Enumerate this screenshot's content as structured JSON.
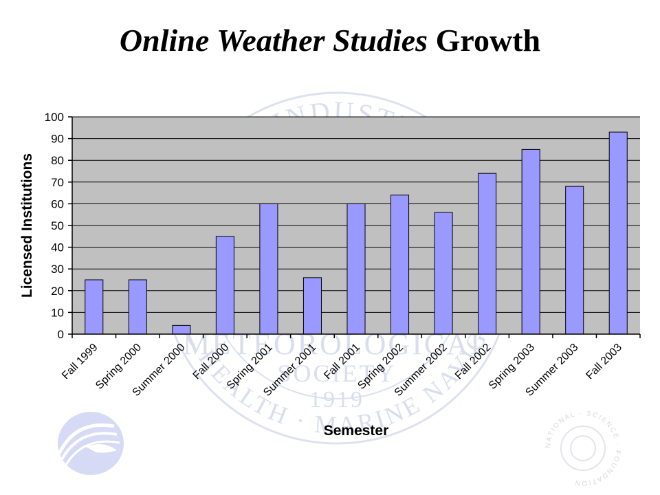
{
  "slide": {
    "title_italic": "Online Weather Studies",
    "title_rest": "Growth"
  },
  "watermark": {
    "seal_text_top": "ENGINEERING · INDUSTRY · COMMERCE",
    "seal_text_middle": [
      "METEOROLOGICAL",
      "SOCIETY",
      "1919"
    ],
    "seal_text_bottom": "PUBLIC HEALTH · MARINE NAVIGATION",
    "nsf_text": "NATIONAL · SCIENCE · FOUNDATION",
    "color": "#d9ddee"
  },
  "colors": {
    "bar_fill": "#9999ff",
    "bar_stroke": "#000000",
    "plot_bg": "#c0c0c0",
    "gridline": "#000000"
  },
  "chart_data": {
    "type": "bar",
    "title": "",
    "xlabel": "Semester",
    "ylabel": "Licensed Institutions",
    "ylim": [
      0,
      100
    ],
    "yticks": [
      0,
      10,
      20,
      30,
      40,
      50,
      60,
      70,
      80,
      90,
      100
    ],
    "grid": true,
    "legend": "none",
    "categories": [
      "Fall 1999",
      "Spring 2000",
      "Summer 2000",
      "Fall 2000",
      "Spring 2001",
      "Summer 2001",
      "Fall 2001",
      "Spring 2002",
      "Summer 2002",
      "Fall 2002",
      "Spring 2003",
      "Summer 2003",
      "Fall 2003"
    ],
    "values": [
      25,
      25,
      4,
      45,
      60,
      26,
      60,
      64,
      56,
      74,
      85,
      68,
      93
    ]
  }
}
